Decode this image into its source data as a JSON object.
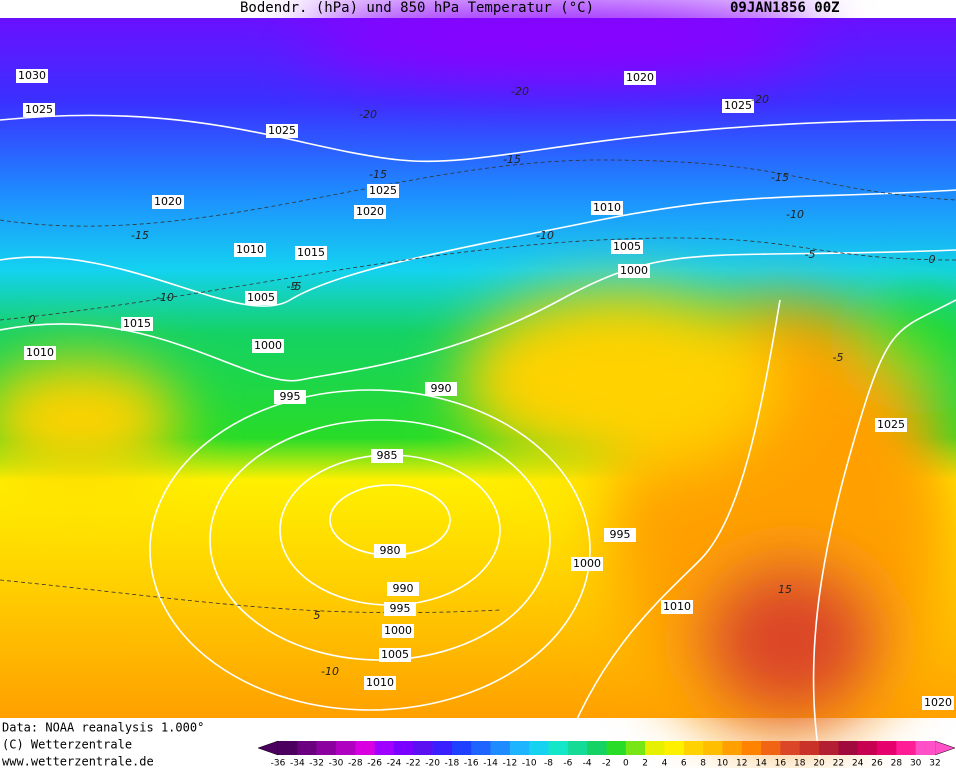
{
  "header": {
    "title": "Bodendr. (hPa) und 850 hPa Temperatur (°C)",
    "date": "09JAN1856 00Z"
  },
  "isobars": [
    "1030",
    "1025",
    "1025",
    "1020",
    "1025",
    "1020",
    "1015",
    "1010",
    "1005",
    "1000",
    "995",
    "990",
    "985",
    "980",
    "990",
    "995",
    "1000",
    "1005",
    "1010",
    "1000",
    "995",
    "1010",
    "1020",
    "1025",
    "1010",
    "1005",
    "1000",
    "1015",
    "1010",
    "1025",
    "1020"
  ],
  "temperature_labels": [
    "-20",
    "-15",
    "-15",
    "-20",
    "-20",
    "-15",
    "-10",
    "-10",
    "-5",
    "-15",
    "-10",
    "-5",
    "0",
    "-5",
    "15",
    "5",
    "-10",
    "0",
    "-5"
  ],
  "footer": {
    "source": "Data: NOAA reanalysis 1.000°",
    "copyright": "(C) Wetterzentrale",
    "url": "www.wetterzentrale.de"
  },
  "colorbar": {
    "ticks": [
      -36,
      -34,
      -32,
      -30,
      -28,
      -26,
      -24,
      -22,
      -20,
      -18,
      -16,
      -14,
      -12,
      -10,
      -8,
      -6,
      -4,
      -2,
      0,
      2,
      4,
      6,
      8,
      10,
      12,
      14,
      16,
      18,
      20,
      22,
      24,
      26,
      28,
      30,
      32
    ],
    "colors": [
      "#4b0060",
      "#6a007f",
      "#8c00a0",
      "#b000c0",
      "#d800e0",
      "#a000ff",
      "#7a00ff",
      "#5a10f0",
      "#3a20ff",
      "#2040ff",
      "#1e64ff",
      "#1e8cff",
      "#1eb4ff",
      "#14d2f0",
      "#14e6c8",
      "#14dc96",
      "#14d264",
      "#28dc28",
      "#78e614",
      "#e6f000",
      "#fff000",
      "#ffd200",
      "#ffbe00",
      "#ffa000",
      "#ff8200",
      "#f06414",
      "#dc4628",
      "#c83228",
      "#b41e32",
      "#a00a3c",
      "#c80050",
      "#e6006e",
      "#ff1e96",
      "#ff50c8"
    ]
  }
}
